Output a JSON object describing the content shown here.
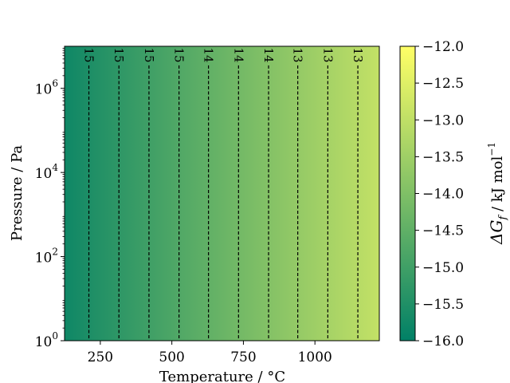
{
  "chart_data": {
    "type": "heatmap",
    "title": "",
    "xlabel": "Temperature / °C",
    "ylabel": "Pressure / Pa",
    "xlim": [
      125,
      1225
    ],
    "x_ticks": [
      250,
      500,
      750,
      1000
    ],
    "x_tick_labels": [
      "250",
      "500",
      "750",
      "1000"
    ],
    "y_scale": "log",
    "ylim": [
      1,
      10000000
    ],
    "y_ticks": [
      1,
      100,
      10000,
      1000000
    ],
    "y_tick_base": "10",
    "y_tick_exponents": [
      "0",
      "2",
      "4",
      "6"
    ],
    "colorbar": {
      "label_symbol": "ΔG",
      "label_sub": "f",
      "label_unit": " / kJ mol",
      "label_unit_exp": "−1",
      "range": [
        -16.0,
        -12.0
      ],
      "ticks": [
        -12.0,
        -12.5,
        -13.0,
        -13.5,
        -14.0,
        -14.5,
        -15.0,
        -15.5,
        -16.0
      ],
      "tick_labels": [
        "−12.0",
        "−12.5",
        "−13.0",
        "−13.5",
        "−14.0",
        "−14.5",
        "−15.0",
        "−15.5",
        "−16.0"
      ],
      "colormap": "summer",
      "colors": [
        "#008066",
        "#ffff66"
      ]
    },
    "field": {
      "depends_on": "temperature",
      "x": [
        125,
        1225
      ],
      "values": [
        -15.77,
        -12.94
      ]
    },
    "contours": {
      "line_style": "dashed",
      "color": "#000000",
      "x_positions": [
        210,
        315,
        420,
        525,
        628,
        733,
        838,
        940,
        1045,
        1150
      ],
      "labels": [
        "15",
        "15",
        "15",
        "15",
        "14",
        "14",
        "14",
        "13",
        "13",
        "13"
      ]
    }
  }
}
